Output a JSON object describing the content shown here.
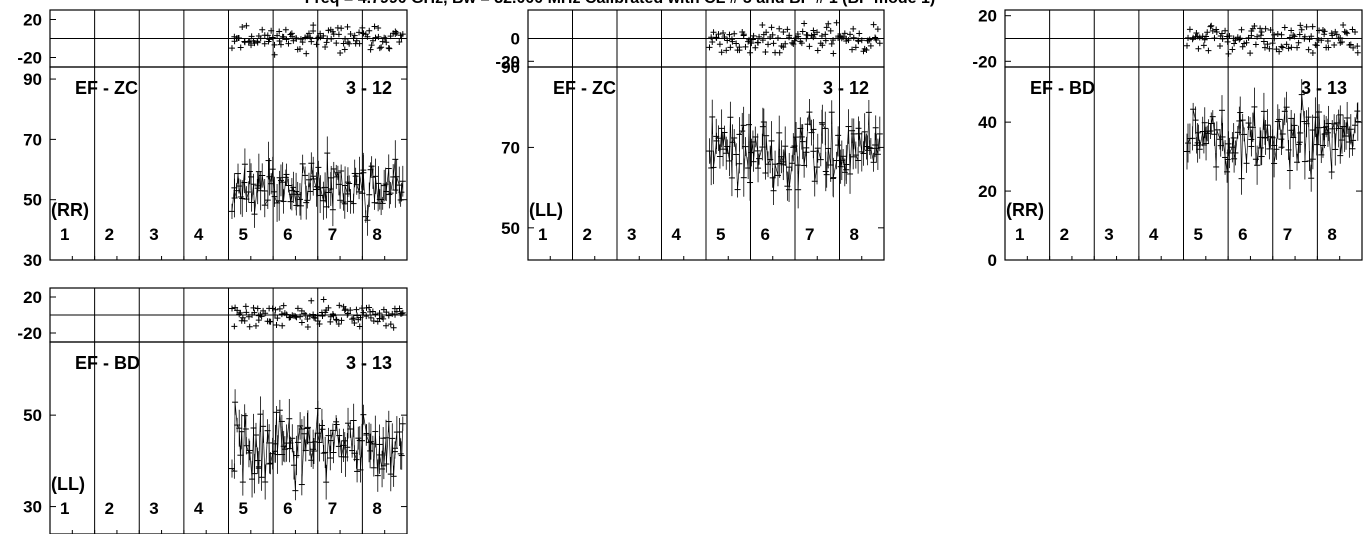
{
  "title": "Freq = 4.7990 GHz, Bw = 32.000 MHz   Calibrated with CL # 5 and BP # 1 (BP mode 1)",
  "chart_data": [
    {
      "type": "scatter",
      "baseline": "EF - ZC",
      "polarization": "(RR)",
      "scan_range": "3 - 12",
      "segments": [
        "1",
        "2",
        "3",
        "4",
        "5",
        "6",
        "7",
        "8"
      ],
      "phase": {
        "ylim": [
          -30,
          30
        ],
        "yticks": [
          20,
          -20
        ],
        "seed": 11,
        "mean": 0,
        "spread": 11
      },
      "amplitude": {
        "ylim": [
          30,
          94
        ],
        "yticks": [
          90,
          70,
          50,
          30
        ],
        "seed": 12,
        "mean": 54,
        "spread": 8
      },
      "data_start_segment": 5
    },
    {
      "type": "scatter",
      "baseline": "EF - ZC",
      "polarization": "(LL)",
      "scan_range": "3 - 12",
      "segments": [
        "1",
        "2",
        "3",
        "4",
        "5",
        "6",
        "7",
        "8"
      ],
      "phase": {
        "ylim": [
          -25,
          25
        ],
        "yticks": [
          0,
          -20
        ],
        "seed": 21,
        "mean": 0,
        "spread": 10
      },
      "amplitude": {
        "ylim": [
          42,
          90
        ],
        "yticks": [
          90,
          70,
          50
        ],
        "seed": 22,
        "mean": 70,
        "spread": 8
      },
      "data_start_segment": 5
    },
    {
      "type": "scatter",
      "baseline": "EF - BD",
      "polarization": "(RR)",
      "scan_range": "3 - 13",
      "segments": [
        "1",
        "2",
        "3",
        "4",
        "5",
        "6",
        "7",
        "8"
      ],
      "phase": {
        "ylim": [
          -25,
          25
        ],
        "yticks": [
          20,
          -20
        ],
        "seed": 31,
        "mean": 0,
        "spread": 10
      },
      "amplitude": {
        "ylim": [
          0,
          56
        ],
        "yticks": [
          40,
          20,
          0
        ],
        "seed": 32,
        "mean": 35,
        "spread": 9
      },
      "data_start_segment": 5
    },
    {
      "type": "scatter",
      "baseline": "EF - BD",
      "polarization": "(LL)",
      "scan_range": "3 - 13",
      "segments": [
        "1",
        "2",
        "3",
        "4",
        "5",
        "6",
        "7",
        "8"
      ],
      "phase": {
        "ylim": [
          -30,
          30
        ],
        "yticks": [
          20,
          -20
        ],
        "seed": 41,
        "mean": 0,
        "spread": 11
      },
      "amplitude": {
        "ylim": [
          24,
          66
        ],
        "yticks": [
          50,
          30
        ],
        "seed": 42,
        "mean": 43,
        "spread": 7
      },
      "data_start_segment": 5
    }
  ]
}
